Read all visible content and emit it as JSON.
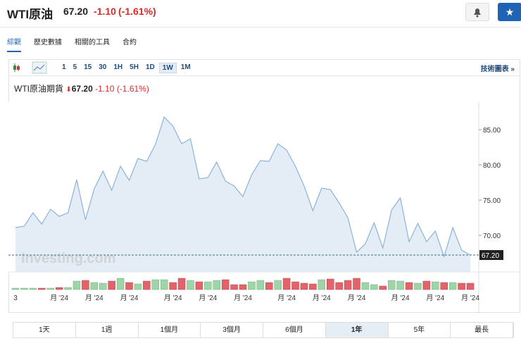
{
  "header": {
    "title": "WTI原油",
    "price": "67.20",
    "change": "-1.10",
    "change_pct": "(-1.61%)"
  },
  "tabs": [
    "綜觀",
    "歷史數據",
    "相關的工具",
    "合約"
  ],
  "toolbar": {
    "intervals": [
      "1",
      "5",
      "15",
      "30",
      "1H",
      "5H",
      "1D",
      "1W",
      "1M"
    ],
    "active_interval": "1W",
    "link": "技術圖表 »"
  },
  "legend": {
    "name": "WTI原油期貨",
    "price": "67.20",
    "change": "-1.10",
    "change_pct": "(-1.61%)"
  },
  "watermark": "Investing.com",
  "chart_data": {
    "type": "area",
    "categories": [
      "3",
      null,
      null,
      null,
      null,
      "月 '24",
      null,
      null,
      null,
      "月 '24",
      null,
      null,
      null,
      "月 '24",
      null,
      null,
      null,
      null,
      "月 '24",
      null,
      null,
      null,
      "月 '24",
      null,
      null,
      null,
      "月 '24",
      null,
      null,
      null,
      null,
      "月 '24",
      null,
      null,
      null,
      "月 '24",
      null,
      null,
      null,
      "月 '24",
      null,
      null,
      null,
      null,
      "月 '24",
      null,
      null,
      null,
      "月 '24",
      null,
      null,
      null,
      "月 '24"
    ],
    "series": [
      {
        "name": "WTI原油期貨",
        "color": "#8ab4d8",
        "fill": "#e4edf5",
        "values": [
          71.1,
          71.3,
          73.2,
          71.6,
          73.7,
          72.7,
          73.2,
          77.9,
          72.2,
          76.6,
          79.1,
          76.4,
          79.8,
          77.8,
          80.9,
          80.5,
          82.9,
          86.8,
          85.5,
          83.0,
          83.7,
          78.0,
          78.2,
          80.4,
          77.7,
          77.0,
          75.5,
          78.6,
          80.6,
          80.5,
          83.0,
          82.1,
          79.8,
          77.0,
          73.5,
          76.7,
          76.5,
          74.6,
          72.5,
          67.6,
          68.8,
          71.8,
          68.2,
          73.6,
          75.3,
          69.1,
          71.7,
          69.1,
          70.6,
          67.0,
          71.1,
          67.9,
          67.2
        ]
      }
    ],
    "volume": {
      "up_color": "#9fd3a8",
      "down_color": "#e0646a",
      "values": [
        2,
        2,
        2,
        2,
        2,
        3,
        3,
        12,
        13,
        10,
        9,
        12,
        16,
        10,
        8,
        12,
        14,
        14,
        10,
        16,
        13,
        11,
        11,
        13,
        14,
        7,
        7,
        11,
        13,
        10,
        13,
        16,
        11,
        9,
        8,
        14,
        15,
        10,
        13,
        16,
        10,
        7,
        5,
        13,
        12,
        10,
        9,
        12,
        11,
        10,
        10,
        9,
        9
      ],
      "ylim": [
        0,
        20
      ]
    },
    "ylim": [
      64.8,
      88.9
    ],
    "yticks": [
      {
        "value": 70,
        "label": "70.00"
      },
      {
        "value": 75,
        "label": "75.00"
      },
      {
        "value": 80,
        "label": "80.00"
      },
      {
        "value": 85,
        "label": "85.00"
      }
    ],
    "last_value": 67.2,
    "last_label": "67.20"
  },
  "ranges": [
    "1天",
    "1週",
    "1個月",
    "3個月",
    "6個月",
    "1年",
    "5年",
    "最長"
  ],
  "active_range": "1年"
}
